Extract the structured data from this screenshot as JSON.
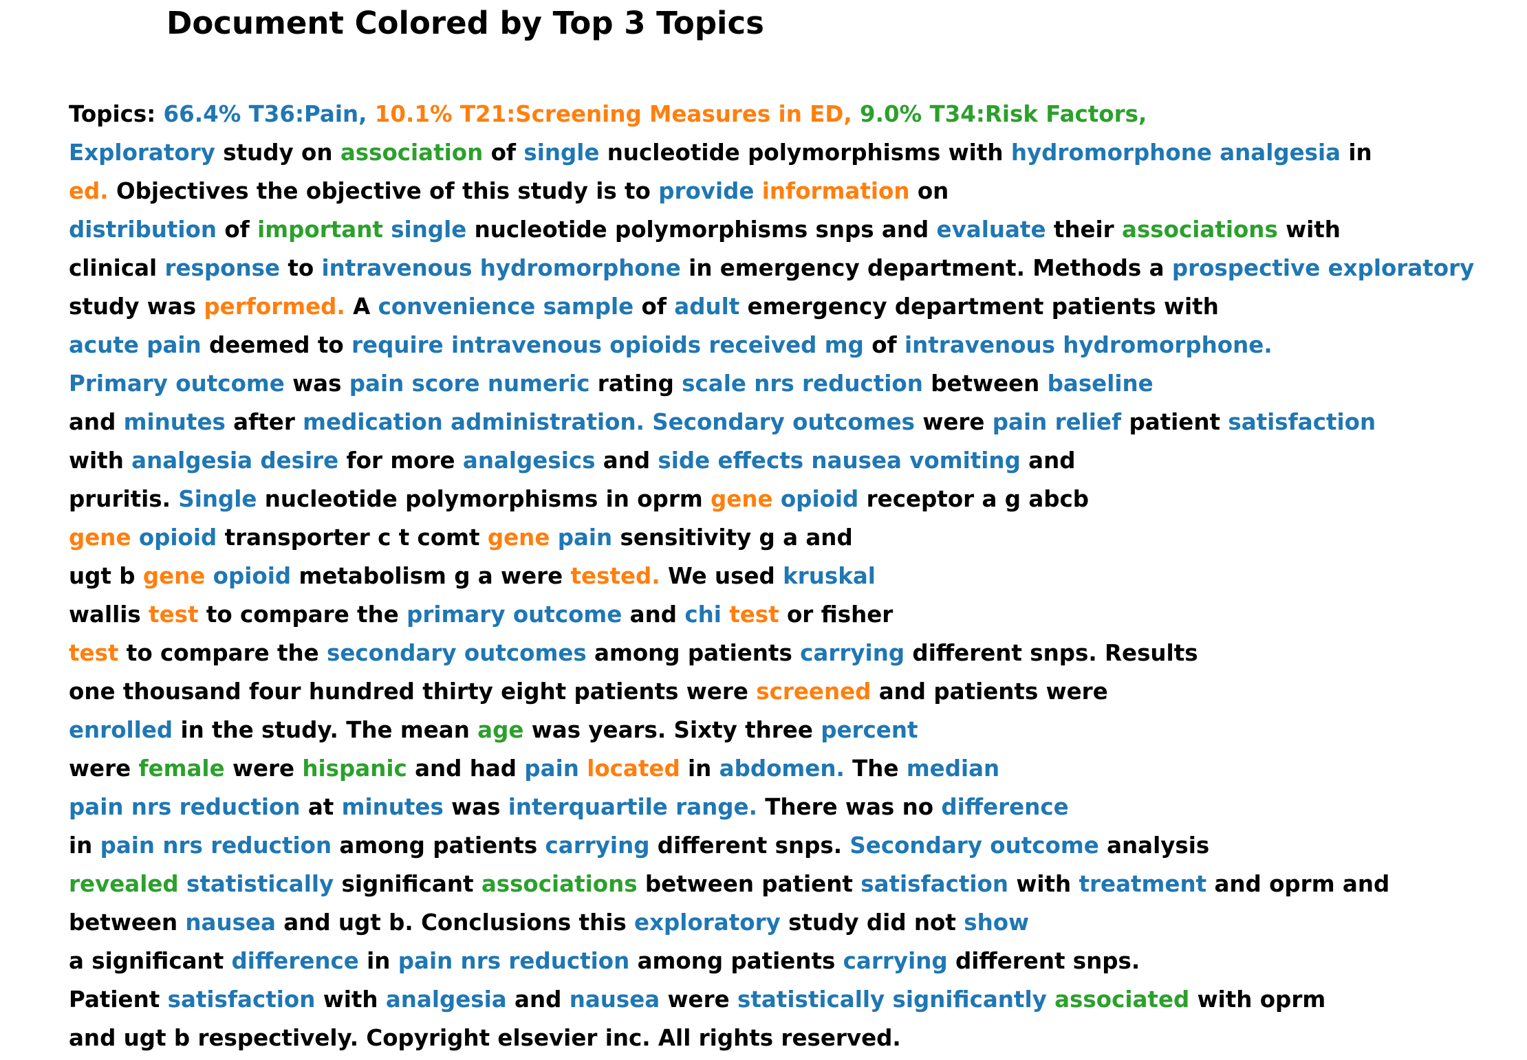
{
  "title": "Document Colored by Top 3 Topics",
  "colors": {
    "k": "#000000",
    "b": "#1f77b4",
    "o": "#ff7f0e",
    "g": "#2ca02c"
  },
  "lines": [
    [
      [
        "k",
        "Topics: "
      ],
      [
        "b",
        "66.4% T36:Pain, "
      ],
      [
        "o",
        "10.1% T21:Screening Measures in ED, "
      ],
      [
        "g",
        "9.0% T34:Risk Factors,"
      ]
    ],
    [
      [
        "b",
        "Exploratory"
      ],
      [
        "k",
        " study on "
      ],
      [
        "g",
        "association"
      ],
      [
        "k",
        " of "
      ],
      [
        "b",
        "single"
      ],
      [
        "k",
        " nucleotide polymorphisms with "
      ],
      [
        "b",
        "hydromorphone analgesia"
      ],
      [
        "k",
        " in"
      ]
    ],
    [
      [
        "o",
        "ed."
      ],
      [
        "k",
        " Objectives the objective of this study is to "
      ],
      [
        "b",
        "provide"
      ],
      [
        "k",
        " "
      ],
      [
        "o",
        "information"
      ],
      [
        "k",
        " on"
      ]
    ],
    [
      [
        "b",
        "distribution"
      ],
      [
        "k",
        " of "
      ],
      [
        "g",
        "important"
      ],
      [
        "k",
        " "
      ],
      [
        "b",
        "single"
      ],
      [
        "k",
        " nucleotide polymorphisms snps and "
      ],
      [
        "b",
        "evaluate"
      ],
      [
        "k",
        " their "
      ],
      [
        "g",
        "associations"
      ],
      [
        "k",
        " with"
      ]
    ],
    [
      [
        "k",
        "clinical "
      ],
      [
        "b",
        "response"
      ],
      [
        "k",
        " to "
      ],
      [
        "b",
        "intravenous hydromorphone"
      ],
      [
        "k",
        " in emergency department. Methods a "
      ],
      [
        "b",
        "prospective exploratory"
      ]
    ],
    [
      [
        "k",
        "study was "
      ],
      [
        "o",
        "performed."
      ],
      [
        "k",
        " A "
      ],
      [
        "b",
        "convenience sample"
      ],
      [
        "k",
        " of "
      ],
      [
        "b",
        "adult"
      ],
      [
        "k",
        " emergency department patients with"
      ]
    ],
    [
      [
        "b",
        "acute pain"
      ],
      [
        "k",
        " deemed to "
      ],
      [
        "b",
        "require intravenous opioids received mg"
      ],
      [
        "k",
        " of "
      ],
      [
        "b",
        "intravenous hydromorphone."
      ]
    ],
    [
      [
        "b",
        "Primary outcome"
      ],
      [
        "k",
        " was "
      ],
      [
        "b",
        "pain score numeric"
      ],
      [
        "k",
        " rating "
      ],
      [
        "b",
        "scale nrs reduction"
      ],
      [
        "k",
        " between "
      ],
      [
        "b",
        "baseline"
      ]
    ],
    [
      [
        "k",
        "and "
      ],
      [
        "b",
        "minutes"
      ],
      [
        "k",
        " after "
      ],
      [
        "b",
        "medication administration. Secondary outcomes"
      ],
      [
        "k",
        " were "
      ],
      [
        "b",
        "pain relief"
      ],
      [
        "k",
        " patient "
      ],
      [
        "b",
        "satisfaction"
      ]
    ],
    [
      [
        "k",
        "with "
      ],
      [
        "b",
        "analgesia desire"
      ],
      [
        "k",
        " for more "
      ],
      [
        "b",
        "analgesics"
      ],
      [
        "k",
        " and "
      ],
      [
        "b",
        "side effects nausea vomiting"
      ],
      [
        "k",
        " and"
      ]
    ],
    [
      [
        "k",
        "pruritis. "
      ],
      [
        "b",
        "Single"
      ],
      [
        "k",
        " nucleotide polymorphisms in oprm "
      ],
      [
        "o",
        "gene"
      ],
      [
        "k",
        " "
      ],
      [
        "b",
        "opioid"
      ],
      [
        "k",
        " receptor a g abcb"
      ]
    ],
    [
      [
        "o",
        "gene"
      ],
      [
        "k",
        " "
      ],
      [
        "b",
        "opioid"
      ],
      [
        "k",
        " transporter c t comt "
      ],
      [
        "o",
        "gene"
      ],
      [
        "k",
        " "
      ],
      [
        "b",
        "pain"
      ],
      [
        "k",
        " sensitivity g a and"
      ]
    ],
    [
      [
        "k",
        "ugt b "
      ],
      [
        "o",
        "gene"
      ],
      [
        "k",
        " "
      ],
      [
        "b",
        "opioid"
      ],
      [
        "k",
        " metabolism g a were "
      ],
      [
        "o",
        "tested."
      ],
      [
        "k",
        " We used "
      ],
      [
        "b",
        "kruskal"
      ]
    ],
    [
      [
        "k",
        "wallis "
      ],
      [
        "o",
        "test"
      ],
      [
        "k",
        " to compare the "
      ],
      [
        "b",
        "primary outcome"
      ],
      [
        "k",
        " and "
      ],
      [
        "b",
        "chi"
      ],
      [
        "k",
        " "
      ],
      [
        "o",
        "test"
      ],
      [
        "k",
        " or fisher"
      ]
    ],
    [
      [
        "o",
        "test"
      ],
      [
        "k",
        " to compare the "
      ],
      [
        "b",
        "secondary outcomes"
      ],
      [
        "k",
        " among patients "
      ],
      [
        "b",
        "carrying"
      ],
      [
        "k",
        " different snps. Results"
      ]
    ],
    [
      [
        "k",
        "one thousand four hundred thirty eight patients were "
      ],
      [
        "o",
        "screened"
      ],
      [
        "k",
        " and patients were"
      ]
    ],
    [
      [
        "b",
        "enrolled"
      ],
      [
        "k",
        " in the study. The mean "
      ],
      [
        "g",
        "age"
      ],
      [
        "k",
        " was years. Sixty three "
      ],
      [
        "b",
        "percent"
      ]
    ],
    [
      [
        "k",
        "were "
      ],
      [
        "g",
        "female"
      ],
      [
        "k",
        " were "
      ],
      [
        "g",
        "hispanic"
      ],
      [
        "k",
        " and had "
      ],
      [
        "b",
        "pain"
      ],
      [
        "k",
        " "
      ],
      [
        "o",
        "located"
      ],
      [
        "k",
        " in "
      ],
      [
        "b",
        "abdomen."
      ],
      [
        "k",
        " The "
      ],
      [
        "b",
        "median"
      ]
    ],
    [
      [
        "b",
        "pain nrs reduction"
      ],
      [
        "k",
        " at "
      ],
      [
        "b",
        "minutes"
      ],
      [
        "k",
        " was "
      ],
      [
        "b",
        "interquartile range."
      ],
      [
        "k",
        " There was no "
      ],
      [
        "b",
        "difference"
      ]
    ],
    [
      [
        "k",
        "in "
      ],
      [
        "b",
        "pain nrs reduction"
      ],
      [
        "k",
        " among patients "
      ],
      [
        "b",
        "carrying"
      ],
      [
        "k",
        " different snps. "
      ],
      [
        "b",
        "Secondary outcome"
      ],
      [
        "k",
        " analysis"
      ]
    ],
    [
      [
        "g",
        "revealed"
      ],
      [
        "k",
        " "
      ],
      [
        "b",
        "statistically"
      ],
      [
        "k",
        " significant "
      ],
      [
        "g",
        "associations"
      ],
      [
        "k",
        " between patient "
      ],
      [
        "b",
        "satisfaction"
      ],
      [
        "k",
        " with "
      ],
      [
        "b",
        "treatment"
      ],
      [
        "k",
        " and oprm and"
      ]
    ],
    [
      [
        "k",
        "between "
      ],
      [
        "b",
        "nausea"
      ],
      [
        "k",
        " and ugt b. Conclusions this "
      ],
      [
        "b",
        "exploratory"
      ],
      [
        "k",
        " study did not "
      ],
      [
        "b",
        "show"
      ]
    ],
    [
      [
        "k",
        "a significant "
      ],
      [
        "b",
        "difference"
      ],
      [
        "k",
        " in "
      ],
      [
        "b",
        "pain nrs reduction"
      ],
      [
        "k",
        " among patients "
      ],
      [
        "b",
        "carrying"
      ],
      [
        "k",
        " different snps."
      ]
    ],
    [
      [
        "k",
        "Patient "
      ],
      [
        "b",
        "satisfaction"
      ],
      [
        "k",
        " with "
      ],
      [
        "b",
        "analgesia"
      ],
      [
        "k",
        " and "
      ],
      [
        "b",
        "nausea"
      ],
      [
        "k",
        " were "
      ],
      [
        "b",
        "statistically significantly"
      ],
      [
        "k",
        " "
      ],
      [
        "g",
        "associated"
      ],
      [
        "k",
        " with oprm"
      ]
    ],
    [
      [
        "k",
        "and ugt b respectively. Copyright elsevier inc. All rights reserved."
      ]
    ]
  ]
}
